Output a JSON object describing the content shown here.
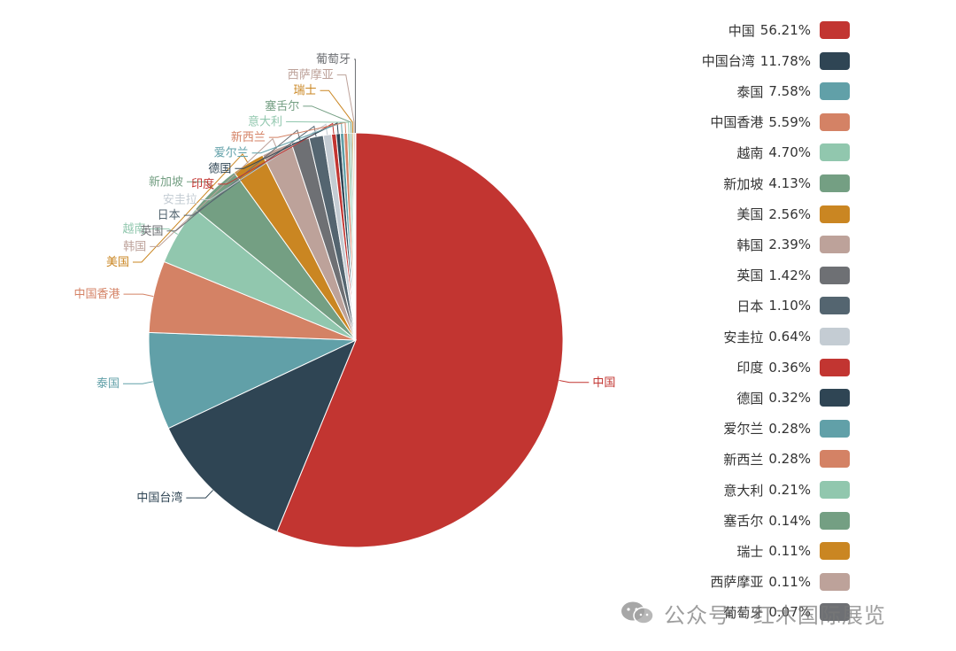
{
  "chart_data": {
    "type": "pie",
    "slices": [
      {
        "name": "中国",
        "value": 56.21,
        "pct_label": "56.21%",
        "color": "#c23531"
      },
      {
        "name": "中国台湾",
        "value": 11.78,
        "pct_label": "11.78%",
        "color": "#2f4554"
      },
      {
        "name": "泰国",
        "value": 7.58,
        "pct_label": "7.58%",
        "color": "#61a0a8"
      },
      {
        "name": "中国香港",
        "value": 5.59,
        "pct_label": "5.59%",
        "color": "#d48265"
      },
      {
        "name": "越南",
        "value": 4.7,
        "pct_label": "4.70%",
        "color": "#91c7ae"
      },
      {
        "name": "新加坡",
        "value": 4.13,
        "pct_label": "4.13%",
        "color": "#749f83"
      },
      {
        "name": "美国",
        "value": 2.56,
        "pct_label": "2.56%",
        "color": "#ca8622"
      },
      {
        "name": "韩国",
        "value": 2.39,
        "pct_label": "2.39%",
        "color": "#bda29a"
      },
      {
        "name": "英国",
        "value": 1.42,
        "pct_label": "1.42%",
        "color": "#6e7074"
      },
      {
        "name": "日本",
        "value": 1.1,
        "pct_label": "1.10%",
        "color": "#546570"
      },
      {
        "name": "安圭拉",
        "value": 0.64,
        "pct_label": "0.64%",
        "color": "#c4ccd3"
      },
      {
        "name": "印度",
        "value": 0.36,
        "pct_label": "0.36%",
        "color": "#c23531"
      },
      {
        "name": "德国",
        "value": 0.32,
        "pct_label": "0.32%",
        "color": "#2f4554"
      },
      {
        "name": "爱尔兰",
        "value": 0.28,
        "pct_label": "0.28%",
        "color": "#61a0a8"
      },
      {
        "name": "新西兰",
        "value": 0.28,
        "pct_label": "0.28%",
        "color": "#d48265"
      },
      {
        "name": "意大利",
        "value": 0.21,
        "pct_label": "0.21%",
        "color": "#91c7ae"
      },
      {
        "name": "塞舌尔",
        "value": 0.14,
        "pct_label": "0.14%",
        "color": "#749f83"
      },
      {
        "name": "瑞士",
        "value": 0.11,
        "pct_label": "0.11%",
        "color": "#ca8622"
      },
      {
        "name": "西萨摩亚",
        "value": 0.11,
        "pct_label": "0.11%",
        "color": "#bda29a"
      },
      {
        "name": "葡萄牙",
        "value": 0.07,
        "pct_label": "0.07%",
        "color": "#6e7074"
      }
    ],
    "legend_position": "right"
  },
  "watermark": {
    "text": "公众号 · 红木国际展览",
    "icon": "wechat-icon"
  }
}
